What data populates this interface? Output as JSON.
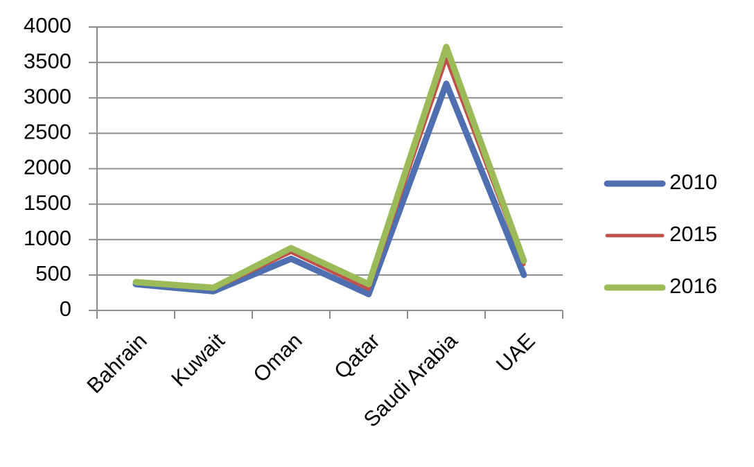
{
  "chart_data": {
    "type": "line",
    "categories": [
      "Bahrain",
      "Kuwait",
      "Oman",
      "Qatar",
      "Saudi Arabia",
      "UAE"
    ],
    "series": [
      {
        "name": "2010",
        "color": "#4f6fb0",
        "values": [
          370,
          270,
          730,
          230,
          3200,
          500
        ]
      },
      {
        "name": "2015",
        "color": "#c0504d",
        "values": [
          390,
          300,
          820,
          300,
          3550,
          650
        ]
      },
      {
        "name": "2016",
        "color": "#9bbb59",
        "values": [
          400,
          320,
          880,
          370,
          3720,
          700
        ]
      }
    ],
    "ylim": [
      0,
      4000
    ],
    "yticks": [
      0,
      500,
      1000,
      1500,
      2000,
      2500,
      3000,
      3500,
      4000
    ],
    "grid": true,
    "legend": "right"
  }
}
